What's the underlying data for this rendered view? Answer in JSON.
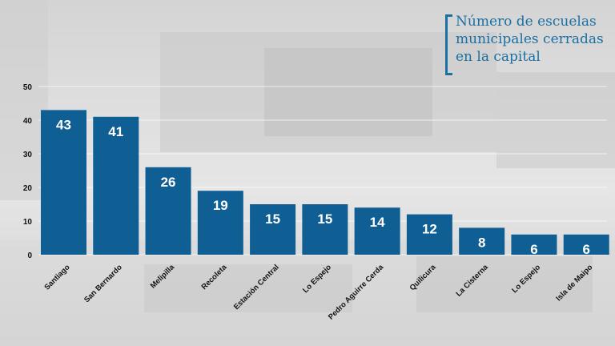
{
  "title": "Número de escuelas municipales cerradas en la capital",
  "colors": {
    "bar": "#0f5f94",
    "accent": "#1a6fa3",
    "axis_text": "#111111",
    "label_text": "#ffffff"
  },
  "chart_data": {
    "type": "bar",
    "title": "Número de escuelas municipales cerradas en la capital",
    "categories": [
      "Santiago",
      "San Bernardo",
      "Melipilla",
      "Recoleta",
      "Estación Central",
      "Lo Espejo",
      "Pedro Aguirre Cerda",
      "Quilicura",
      "La Cisterna",
      "Lo Espejo",
      "Isla de Maipo"
    ],
    "values": [
      43,
      41,
      26,
      19,
      15,
      15,
      14,
      12,
      8,
      6,
      6
    ],
    "ylim": [
      0,
      50
    ],
    "yticks": [
      0,
      10,
      20,
      30,
      40,
      50
    ],
    "grid": true,
    "xlabel": "",
    "ylabel": ""
  }
}
